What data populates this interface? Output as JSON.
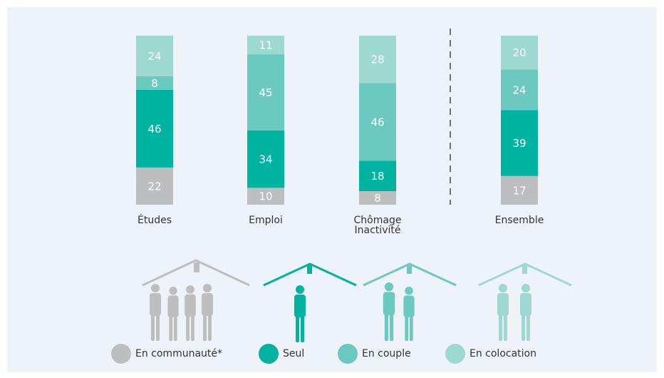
{
  "chart_data": {
    "type": "bar",
    "stacked": true,
    "categories": [
      "Études",
      "Emploi",
      "Chômage Inactivité",
      "Ensemble"
    ],
    "series": [
      {
        "name": "En communauté*",
        "color": "#bdbec0",
        "values": [
          22,
          10,
          8,
          17
        ]
      },
      {
        "name": "Seul",
        "color": "#00b2a0",
        "values": [
          46,
          34,
          18,
          39
        ]
      },
      {
        "name": "En couple",
        "color": "#6cc9bf",
        "values": [
          8,
          45,
          46,
          24
        ]
      },
      {
        "name": "En colocation",
        "color": "#9dd8d1",
        "values": [
          24,
          11,
          28,
          20
        ]
      }
    ]
  }
}
